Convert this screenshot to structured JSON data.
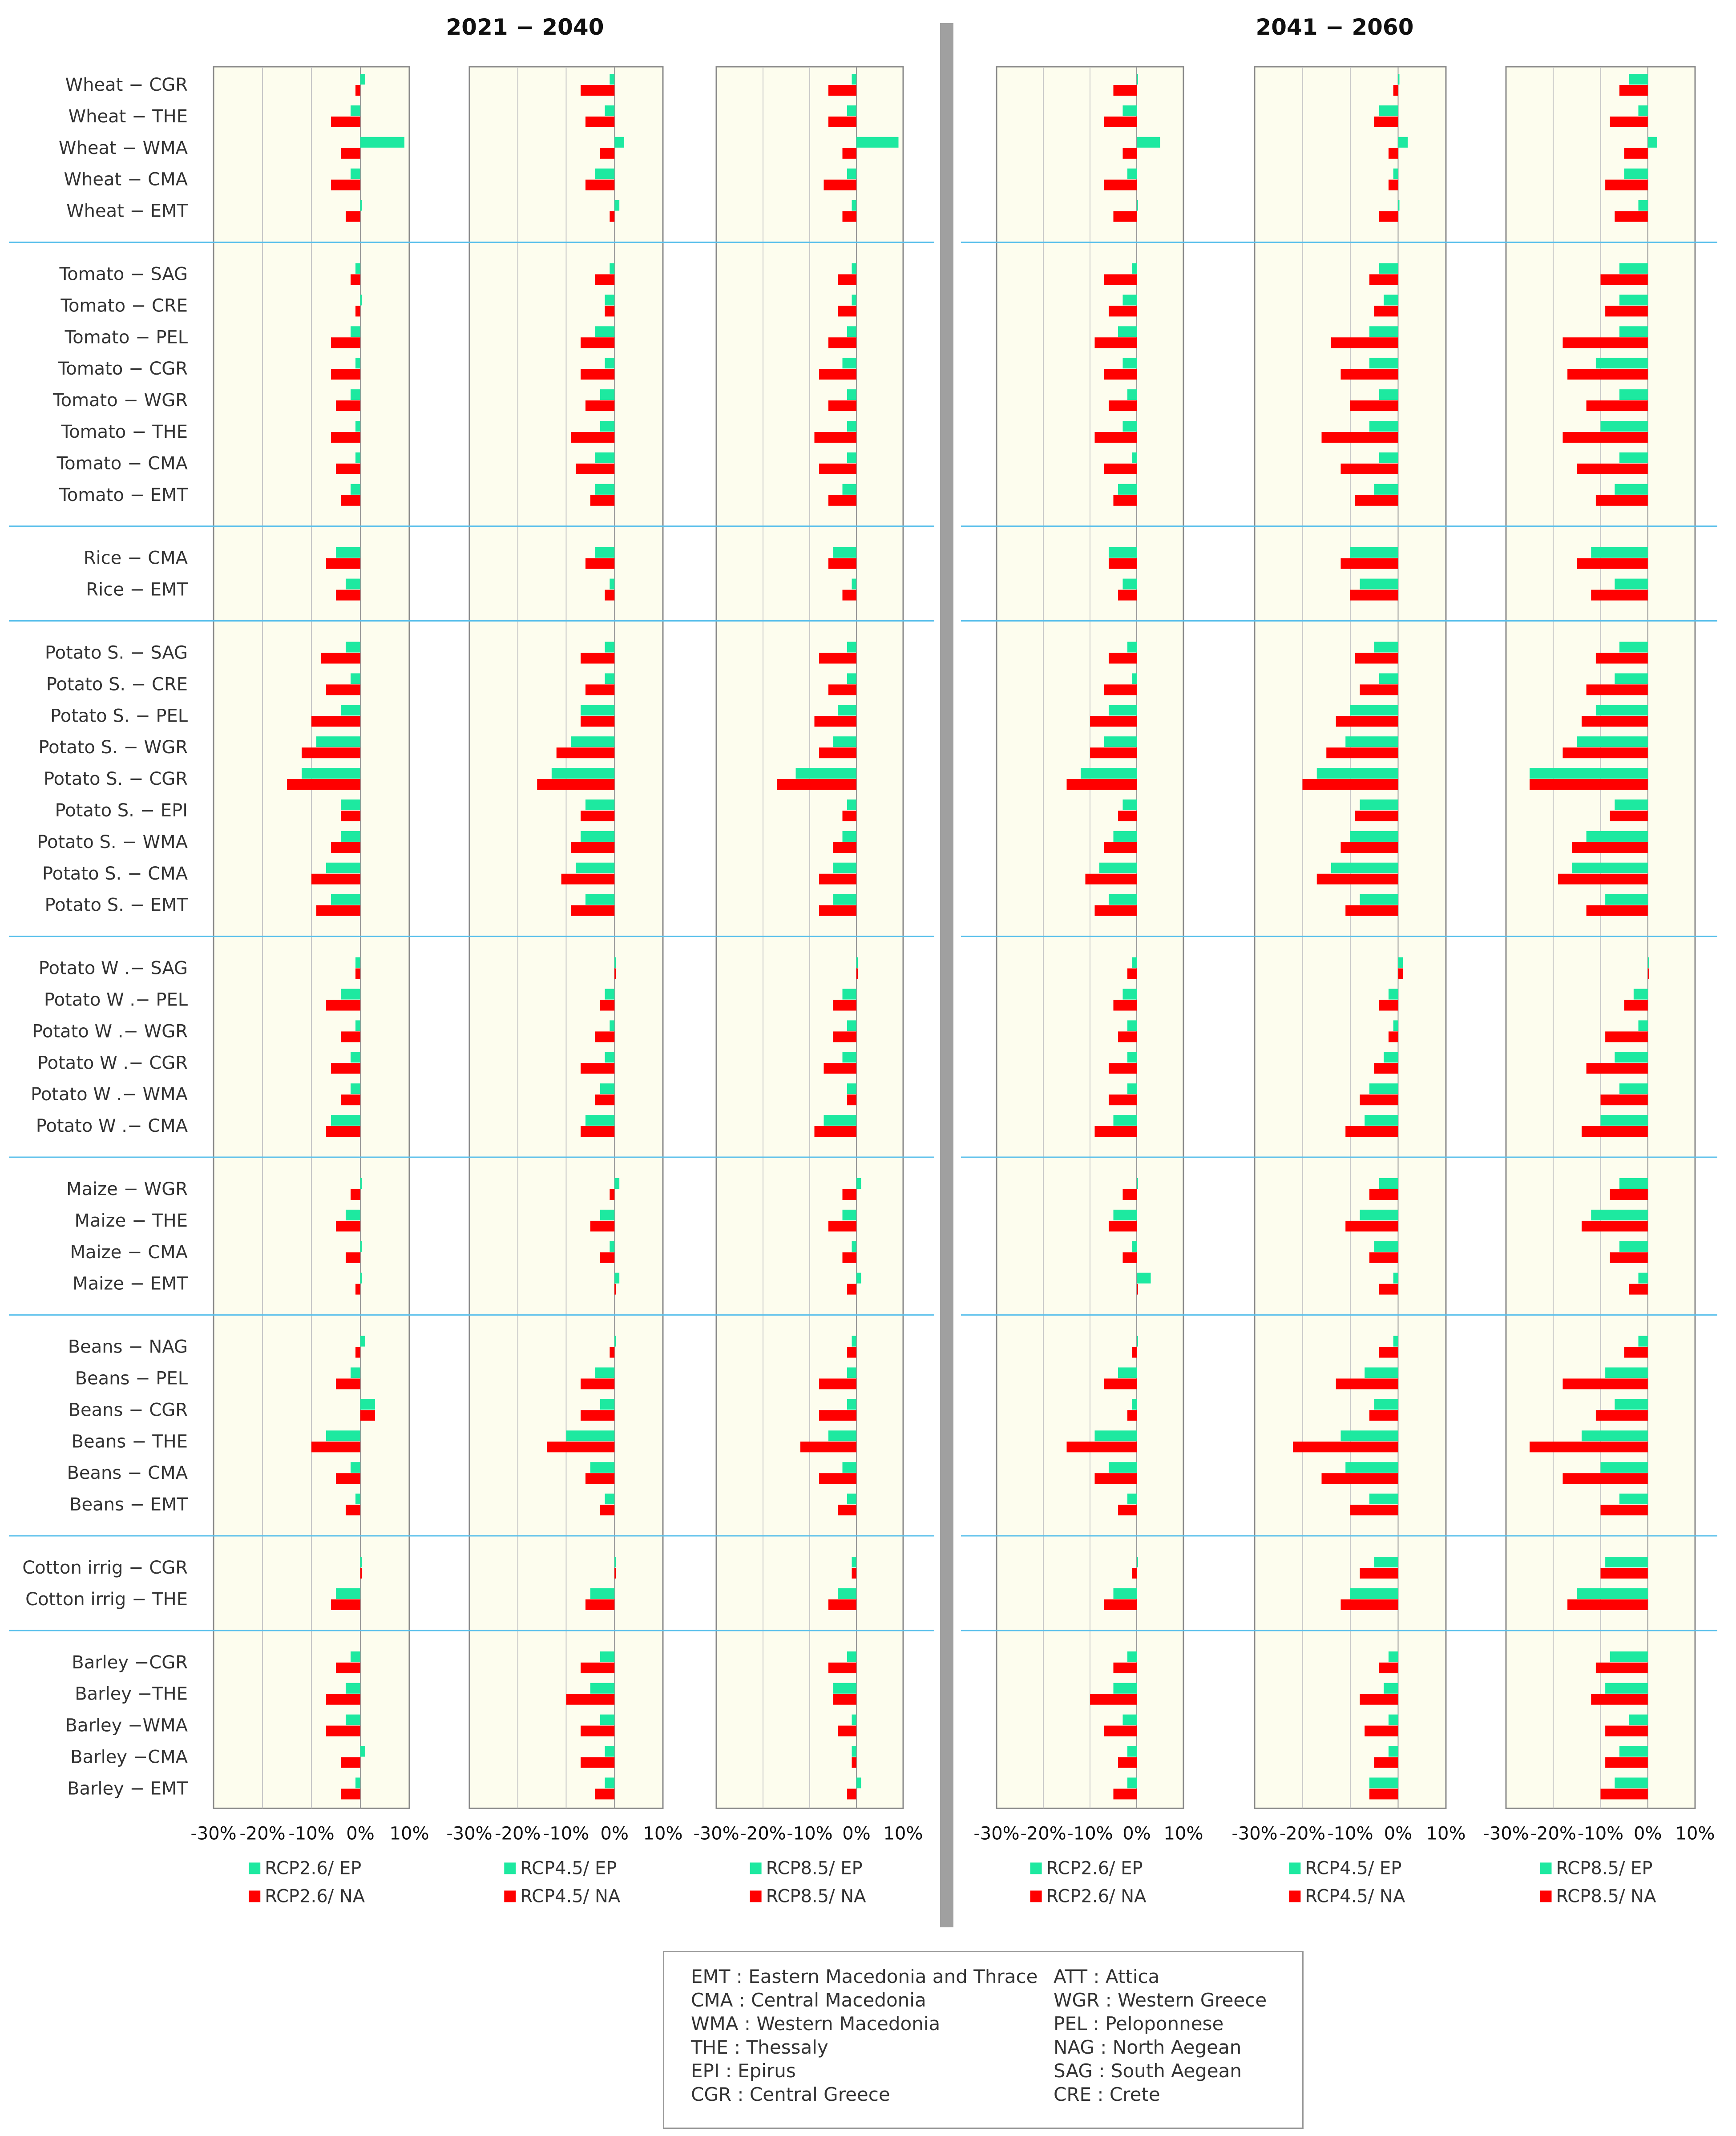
{
  "chart_data": {
    "type": "bar",
    "period_titles": [
      "2021 − 2040",
      "2041 − 2060"
    ],
    "xlim": [
      -30,
      10
    ],
    "xticks": [
      -30,
      -20,
      -10,
      0,
      10
    ],
    "xtick_labels": [
      "-30%",
      "-20%",
      "-10%",
      "0%",
      "10%"
    ],
    "colors": {
      "EP": "#1de9a0",
      "NA": "#ff0000",
      "plot_bg": "#fdfdee",
      "grid": "#c8c8c8",
      "separator": "#5bc0eb",
      "divider": "#a0a0a0"
    },
    "groups": [
      {
        "name": "Wheat",
        "categories": [
          "Wheat − CGR",
          "Wheat − THE",
          "Wheat − WMA",
          "Wheat − CMA",
          "Wheat − EMT"
        ]
      },
      {
        "name": "Tomato",
        "categories": [
          "Tomato − SAG",
          "Tomato − CRE",
          "Tomato − PEL",
          "Tomato − CGR",
          "Tomato − WGR",
          "Tomato − THE",
          "Tomato − CMA",
          "Tomato − EMT"
        ]
      },
      {
        "name": "Rice",
        "categories": [
          "Rice − CMA",
          "Rice − EMT"
        ]
      },
      {
        "name": "Potato S.",
        "categories": [
          "Potato S. − SAG",
          "Potato S. − CRE",
          "Potato S. − PEL",
          "Potato S. − WGR",
          "Potato S. − CGR",
          "Potato S. − EPI",
          "Potato S. − WMA",
          "Potato S. − CMA",
          "Potato S. − EMT"
        ]
      },
      {
        "name": "Potato W",
        "categories": [
          "Potato W .− SAG",
          "Potato W .− PEL",
          "Potato W .− WGR",
          "Potato W .− CGR",
          "Potato W .− WMA",
          "Potato W .− CMA"
        ]
      },
      {
        "name": "Maize",
        "categories": [
          "Maize − WGR",
          "Maize − THE",
          "Maize − CMA",
          "Maize − EMT"
        ]
      },
      {
        "name": "Beans",
        "categories": [
          "Beans − NAG",
          "Beans − PEL",
          "Beans − CGR",
          "Beans − THE",
          "Beans − CMA",
          "Beans − EMT"
        ]
      },
      {
        "name": "Cotton irrig",
        "categories": [
          "Cotton  irrig − CGR",
          "Cotton  irrig − THE"
        ]
      },
      {
        "name": "Barley",
        "categories": [
          "Barley −CGR",
          "Barley −THE",
          "Barley −WMA",
          "Barley −CMA",
          "Barley − EMT"
        ]
      }
    ],
    "panels": [
      {
        "period": "2021 − 2040",
        "scenario": "RCP2.6",
        "legend": [
          "RCP2.6/ EP",
          "RCP2.6/ NA"
        ],
        "groups": [
          {
            "EP": [
              1,
              -2,
              9,
              -2,
              0
            ],
            "NA": [
              -1,
              -6,
              -4,
              -6,
              -3
            ]
          },
          {
            "EP": [
              -1,
              0,
              -2,
              -1,
              -2,
              -1,
              -1,
              -2
            ],
            "NA": [
              -2,
              -1,
              -6,
              -6,
              -5,
              -6,
              -5,
              -4
            ]
          },
          {
            "EP": [
              -5,
              -3
            ],
            "NA": [
              -7,
              -5
            ]
          },
          {
            "EP": [
              -3,
              -2,
              -4,
              -9,
              -12,
              -4,
              -4,
              -7,
              -6
            ],
            "NA": [
              -8,
              -7,
              -10,
              -12,
              -15,
              -4,
              -6,
              -10,
              -9
            ]
          },
          {
            "EP": [
              -1,
              -4,
              -1,
              -2,
              -2,
              -6
            ],
            "NA": [
              -1,
              -7,
              -4,
              -6,
              -4,
              -7
            ]
          },
          {
            "EP": [
              0,
              -3,
              0,
              0
            ],
            "NA": [
              -2,
              -5,
              -3,
              -1
            ]
          },
          {
            "EP": [
              1,
              -2,
              3,
              -7,
              -2,
              -1
            ],
            "NA": [
              -1,
              -5,
              3,
              -10,
              -5,
              -3
            ]
          },
          {
            "EP": [
              0,
              -5
            ],
            "NA": [
              0,
              -6
            ]
          },
          {
            "EP": [
              -2,
              -3,
              -3,
              1,
              -1
            ],
            "NA": [
              -5,
              -7,
              -7,
              -4,
              -4
            ]
          }
        ]
      },
      {
        "period": "2021 − 2040",
        "scenario": "RCP4.5",
        "legend": [
          "RCP4.5/ EP",
          "RCP4.5/ NA"
        ],
        "groups": [
          {
            "EP": [
              -1,
              -2,
              2,
              -4,
              1
            ],
            "NA": [
              -7,
              -6,
              -3,
              -6,
              -1
            ]
          },
          {
            "EP": [
              -1,
              -2,
              -4,
              -2,
              -3,
              -3,
              -4,
              -4
            ],
            "NA": [
              -4,
              -2,
              -7,
              -7,
              -6,
              -9,
              -8,
              -5
            ]
          },
          {
            "EP": [
              -4,
              -1
            ],
            "NA": [
              -6,
              -2
            ]
          },
          {
            "EP": [
              -2,
              -2,
              -7,
              -9,
              -13,
              -6,
              -7,
              -8,
              -6
            ],
            "NA": [
              -7,
              -6,
              -7,
              -12,
              -16,
              -7,
              -9,
              -11,
              -9
            ]
          },
          {
            "EP": [
              0,
              -2,
              -1,
              -2,
              -3,
              -6
            ],
            "NA": [
              0,
              -3,
              -4,
              -7,
              -4,
              -7
            ]
          },
          {
            "EP": [
              1,
              -3,
              -1,
              1
            ],
            "NA": [
              -1,
              -5,
              -3,
              0
            ]
          },
          {
            "EP": [
              0,
              -4,
              -3,
              -10,
              -5,
              -2
            ],
            "NA": [
              -1,
              -7,
              -7,
              -14,
              -6,
              -3
            ]
          },
          {
            "EP": [
              0,
              -5
            ],
            "NA": [
              0,
              -6
            ]
          },
          {
            "EP": [
              -3,
              -5,
              -3,
              -2,
              -2
            ],
            "NA": [
              -7,
              -10,
              -7,
              -7,
              -4
            ]
          }
        ]
      },
      {
        "period": "2021 − 2040",
        "scenario": "RCP8.5",
        "legend": [
          "RCP8.5/ EP",
          "RCP8.5/ NA"
        ],
        "groups": [
          {
            "EP": [
              -1,
              -2,
              9,
              -2,
              -1
            ],
            "NA": [
              -6,
              -6,
              -3,
              -7,
              -3
            ]
          },
          {
            "EP": [
              -1,
              -1,
              -2,
              -3,
              -2,
              -2,
              -2,
              -3
            ],
            "NA": [
              -4,
              -4,
              -6,
              -8,
              -6,
              -9,
              -8,
              -6
            ]
          },
          {
            "EP": [
              -5,
              -1
            ],
            "NA": [
              -6,
              -3
            ]
          },
          {
            "EP": [
              -2,
              -2,
              -4,
              -5,
              -13,
              -2,
              -3,
              -5,
              -5
            ],
            "NA": [
              -8,
              -6,
              -9,
              -8,
              -17,
              -3,
              -5,
              -8,
              -8
            ]
          },
          {
            "EP": [
              0,
              -3,
              -2,
              -3,
              -2,
              -7
            ],
            "NA": [
              0,
              -5,
              -5,
              -7,
              -2,
              -9
            ]
          },
          {
            "EP": [
              1,
              -3,
              -1,
              1
            ],
            "NA": [
              -3,
              -6,
              -3,
              -2
            ]
          },
          {
            "EP": [
              -1,
              -2,
              -2,
              -6,
              -3,
              -2
            ],
            "NA": [
              -2,
              -8,
              -8,
              -12,
              -8,
              -4
            ]
          },
          {
            "EP": [
              -1,
              -4
            ],
            "NA": [
              -1,
              -6
            ]
          },
          {
            "EP": [
              -2,
              -5,
              -1,
              -1,
              1
            ],
            "NA": [
              -6,
              -5,
              -4,
              -1,
              -2
            ]
          }
        ]
      },
      {
        "period": "2041 − 2060",
        "scenario": "RCP2.6",
        "legend": [
          "RCP2.6/ EP",
          "RCP2.6/ NA"
        ],
        "groups": [
          {
            "EP": [
              0,
              -3,
              5,
              -2,
              0
            ],
            "NA": [
              -5,
              -7,
              -3,
              -7,
              -5
            ]
          },
          {
            "EP": [
              -1,
              -3,
              -4,
              -3,
              -2,
              -3,
              -1,
              -4
            ],
            "NA": [
              -7,
              -6,
              -9,
              -7,
              -6,
              -9,
              -7,
              -5
            ]
          },
          {
            "EP": [
              -6,
              -3
            ],
            "NA": [
              -6,
              -4
            ]
          },
          {
            "EP": [
              -2,
              -1,
              -6,
              -7,
              -12,
              -3,
              -5,
              -8,
              -6
            ],
            "NA": [
              -6,
              -7,
              -10,
              -10,
              -15,
              -4,
              -7,
              -11,
              -9
            ]
          },
          {
            "EP": [
              -1,
              -3,
              -2,
              -2,
              -2,
              -5
            ],
            "NA": [
              -2,
              -5,
              -4,
              -6,
              -6,
              -9
            ]
          },
          {
            "EP": [
              0,
              -5,
              -1,
              3
            ],
            "NA": [
              -3,
              -6,
              -3,
              0
            ]
          },
          {
            "EP": [
              0,
              -4,
              -1,
              -9,
              -6,
              -2
            ],
            "NA": [
              -1,
              -7,
              -2,
              -15,
              -9,
              -4
            ]
          },
          {
            "EP": [
              0,
              -5
            ],
            "NA": [
              -1,
              -7
            ]
          },
          {
            "EP": [
              -2,
              -5,
              -3,
              -2,
              -2
            ],
            "NA": [
              -5,
              -10,
              -7,
              -4,
              -5
            ]
          }
        ]
      },
      {
        "period": "2041 − 2060",
        "scenario": "RCP4.5",
        "legend": [
          "RCP4.5/ EP",
          "RCP4.5/ NA"
        ],
        "groups": [
          {
            "EP": [
              0,
              -4,
              2,
              -1,
              0
            ],
            "NA": [
              -1,
              -5,
              -2,
              -2,
              -4
            ]
          },
          {
            "EP": [
              -4,
              -3,
              -6,
              -6,
              -4,
              -6,
              -4,
              -5
            ],
            "NA": [
              -6,
              -5,
              -14,
              -12,
              -10,
              -16,
              -12,
              -9
            ]
          },
          {
            "EP": [
              -10,
              -8
            ],
            "NA": [
              -12,
              -10
            ]
          },
          {
            "EP": [
              -5,
              -4,
              -10,
              -11,
              -17,
              -8,
              -10,
              -14,
              -8
            ],
            "NA": [
              -9,
              -8,
              -13,
              -15,
              -20,
              -9,
              -12,
              -17,
              -11
            ]
          },
          {
            "EP": [
              1,
              -2,
              -1,
              -3,
              -6,
              -7
            ],
            "NA": [
              1,
              -4,
              -2,
              -5,
              -8,
              -11
            ]
          },
          {
            "EP": [
              -4,
              -8,
              -5,
              -1
            ],
            "NA": [
              -6,
              -11,
              -6,
              -4
            ]
          },
          {
            "EP": [
              -1,
              -7,
              -5,
              -12,
              -11,
              -6
            ],
            "NA": [
              -4,
              -13,
              -6,
              -22,
              -16,
              -10
            ]
          },
          {
            "EP": [
              -5,
              -10
            ],
            "NA": [
              -8,
              -12
            ]
          },
          {
            "EP": [
              -2,
              -3,
              -2,
              -2,
              -6
            ],
            "NA": [
              -4,
              -8,
              -7,
              -5,
              -6
            ]
          }
        ]
      },
      {
        "period": "2041 − 2060",
        "scenario": "RCP8.5",
        "legend": [
          "RCP8.5/ EP",
          "RCP8.5/ NA"
        ],
        "groups": [
          {
            "EP": [
              -4,
              -2,
              2,
              -5,
              -2
            ],
            "NA": [
              -6,
              -8,
              -5,
              -9,
              -7
            ]
          },
          {
            "EP": [
              -6,
              -6,
              -6,
              -11,
              -6,
              -10,
              -6,
              -7
            ],
            "NA": [
              -10,
              -9,
              -18,
              -17,
              -13,
              -18,
              -15,
              -11
            ]
          },
          {
            "EP": [
              -12,
              -7
            ],
            "NA": [
              -15,
              -12
            ]
          },
          {
            "EP": [
              -6,
              -7,
              -11,
              -15,
              -25,
              -7,
              -13,
              -16,
              -9
            ],
            "NA": [
              -11,
              -13,
              -14,
              -18,
              -25,
              -8,
              -16,
              -19,
              -13
            ]
          },
          {
            "EP": [
              0,
              -3,
              -2,
              -7,
              -6,
              -10
            ],
            "NA": [
              0,
              -5,
              -9,
              -13,
              -10,
              -14
            ]
          },
          {
            "EP": [
              -6,
              -12,
              -6,
              -2
            ],
            "NA": [
              -8,
              -14,
              -8,
              -4
            ]
          },
          {
            "EP": [
              -2,
              -9,
              -7,
              -14,
              -10,
              -6
            ],
            "NA": [
              -5,
              -18,
              -11,
              -25,
              -18,
              -10
            ]
          },
          {
            "EP": [
              -9,
              -15
            ],
            "NA": [
              -10,
              -17
            ]
          },
          {
            "EP": [
              -8,
              -9,
              -4,
              -6,
              -7
            ],
            "NA": [
              -11,
              -12,
              -9,
              -9,
              -10
            ]
          }
        ]
      }
    ]
  },
  "abbreviations": {
    "left": [
      "EMT : Eastern Macedonia and Thrace",
      "CMA : Central Macedonia",
      "WMA : Western Macedonia",
      "THE : Thessaly",
      "EPI : Epirus",
      "CGR : Central Greece"
    ],
    "right": [
      "ATT : Attica",
      "WGR : Western Greece",
      "PEL : Peloponnese",
      "NAG : North Aegean",
      "SAG : South Aegean",
      "CRE : Crete"
    ]
  }
}
